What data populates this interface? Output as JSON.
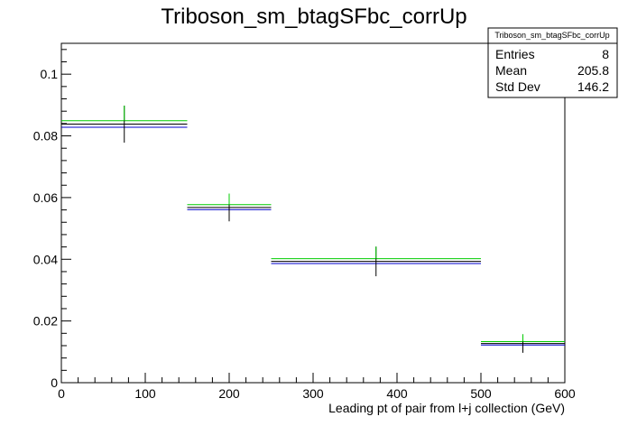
{
  "chart_data": {
    "type": "line",
    "title": "Triboson_sm_btagSFbc_corrUp",
    "xlabel": "Leading pt of pair from l+j collection (GeV)",
    "ylabel": "",
    "xlim": [
      0,
      600
    ],
    "ylim": [
      0,
      0.11
    ],
    "x_ticks": [
      "0",
      "100",
      "200",
      "300",
      "400",
      "500",
      "600"
    ],
    "y_ticks": [
      "0",
      "0.02",
      "0.04",
      "0.06",
      "0.08",
      "0.1"
    ],
    "bins": [
      [
        0,
        150
      ],
      [
        150,
        250
      ],
      [
        250,
        500
      ],
      [
        500,
        600
      ]
    ],
    "series": [
      {
        "color": "#000000",
        "values": [
          0.0838,
          0.0568,
          0.0393,
          0.0127
        ],
        "errors": [
          0.006,
          0.0045,
          0.0048,
          0.003
        ]
      },
      {
        "color": "#0000cc",
        "values": [
          0.0828,
          0.0561,
          0.0386,
          0.0122
        ]
      },
      {
        "color": "#00cc00",
        "values": [
          0.0849,
          0.0577,
          0.0402,
          0.0133
        ]
      }
    ],
    "stats": {
      "name": "Triboson_sm_btagSFbc_corrUp",
      "rows": [
        {
          "label": "Entries",
          "value": "8"
        },
        {
          "label": "Mean",
          "value": "205.8"
        },
        {
          "label": "Std Dev",
          "value": "146.2"
        }
      ]
    }
  }
}
